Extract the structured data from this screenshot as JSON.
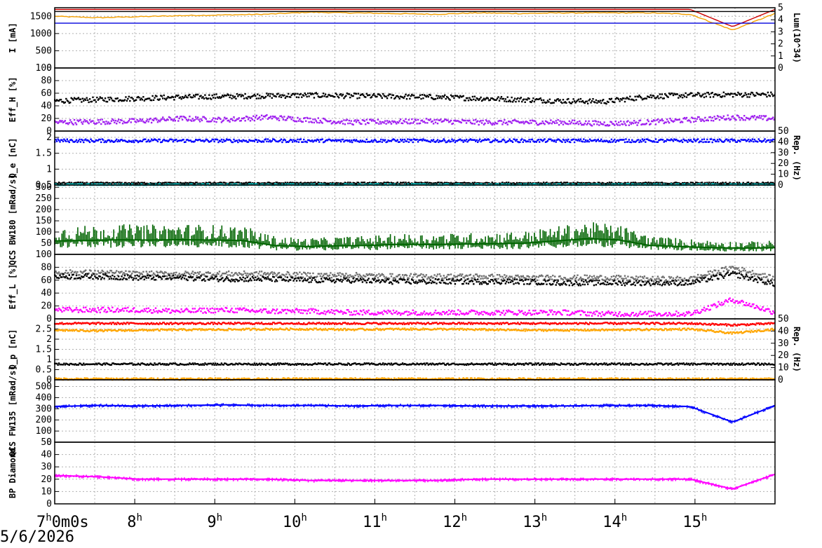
{
  "date_label": "5/6/2026",
  "chart_data": [
    {
      "type": "line",
      "ylabel_left": "I [mA]",
      "ylabel_right": "Lum(10^34)",
      "ylim_left": [
        0,
        1750
      ],
      "yticks_left": [
        "1500",
        "1000",
        "500",
        "0"
      ],
      "ylim_right": [
        0,
        5
      ],
      "yticks_right": [
        "5",
        "4",
        "3",
        "2",
        "1",
        "0"
      ],
      "grid": true,
      "series": [
        {
          "color": "#cc0000",
          "values": [
            1700,
            1700,
            1700,
            1700,
            1700,
            1700,
            1700,
            1700,
            1700,
            1700,
            1700,
            1700,
            1700,
            1700,
            1700,
            1700,
            1200,
            1700
          ]
        },
        {
          "color": "#f5a000",
          "values": [
            1500,
            1460,
            1490,
            1520,
            1540,
            1560,
            1620,
            1600,
            1580,
            1560,
            1600,
            1580,
            1600,
            1600,
            1600,
            1560,
            1100,
            1580
          ]
        },
        {
          "color": "#000000",
          "values": [
            1640,
            1640,
            1640,
            1640,
            1640,
            1640,
            1640,
            1640,
            1640,
            1640,
            1640,
            1640,
            1640,
            1640,
            1640,
            1640,
            1640,
            1640
          ]
        },
        {
          "color": "#0000dd",
          "values": [
            1300,
            1300,
            1300,
            1300,
            1300,
            1300,
            1300,
            1300,
            1300,
            1300,
            1300,
            1300,
            1300,
            1300,
            1300,
            1300,
            1300,
            1300
          ]
        }
      ]
    },
    {
      "type": "scatter",
      "ylabel_left": "Eff_H [%]",
      "ylim_left": [
        0,
        100
      ],
      "yticks_left": [
        "100",
        "80",
        "60",
        "40",
        "20",
        "0"
      ],
      "grid": true,
      "series": [
        {
          "color": "#000000",
          "values": [
            48,
            50,
            52,
            54,
            55,
            56,
            57,
            56,
            55,
            54,
            52,
            50,
            48,
            47,
            55,
            57,
            58,
            58
          ]
        },
        {
          "color": "#a020f0",
          "values": [
            14,
            15,
            16,
            20,
            18,
            22,
            18,
            14,
            15,
            16,
            14,
            14,
            14,
            12,
            14,
            18,
            22,
            20
          ]
        }
      ]
    },
    {
      "type": "scatter",
      "ylabel_left": "Q_e [nC]",
      "ylabel_right": "Rep. (Hz)",
      "ylim_left": [
        0.5,
        2.2
      ],
      "yticks_left": [
        "2",
        "1.5",
        "1",
        "0.5"
      ],
      "ylim_right": [
        0,
        50
      ],
      "yticks_right": [
        "50",
        "40",
        "30",
        "20",
        "10",
        "0"
      ],
      "grid": true,
      "series": [
        {
          "color": "#0000ff",
          "values": [
            1.9,
            1.9,
            1.9,
            1.9,
            1.9,
            1.9,
            1.9,
            1.9,
            1.9,
            1.9,
            1.9,
            1.9,
            1.9,
            1.9,
            1.9,
            1.9,
            1.9,
            1.9
          ]
        },
        {
          "color": "#000000",
          "values": [
            0.56,
            0.56,
            0.56,
            0.56,
            0.56,
            0.56,
            0.56,
            0.56,
            0.56,
            0.56,
            0.56,
            0.56,
            0.56,
            0.56,
            0.56,
            0.56,
            0.56,
            0.56
          ]
        },
        {
          "color": "#00e0e0",
          "values": [
            0.51,
            0.51,
            0.51,
            0.51,
            0.51,
            0.51,
            0.51,
            0.51,
            0.51,
            0.51,
            0.51,
            0.51,
            0.51,
            0.51,
            0.51,
            0.51,
            0.51,
            0.51
          ]
        }
      ]
    },
    {
      "type": "area",
      "ylabel_left": "QCS BW180 [mRad/s]",
      "ylim_left": [
        0,
        310
      ],
      "yticks_left": [
        "300",
        "250",
        "200",
        "150",
        "100",
        "50"
      ],
      "grid": true,
      "series": [
        {
          "color": "#006400",
          "values": [
            60,
            62,
            65,
            64,
            66,
            64,
            62,
            40,
            35,
            38,
            40,
            45,
            44,
            46,
            48,
            50,
            60,
            70,
            65,
            40,
            35,
            30,
            28,
            30
          ]
        }
      ]
    },
    {
      "type": "scatter",
      "ylabel_left": "Eff_L [%]",
      "ylim_left": [
        0,
        100
      ],
      "yticks_left": [
        "100",
        "80",
        "60",
        "40",
        "20",
        "0"
      ],
      "grid": true,
      "series": [
        {
          "color": "#707070",
          "values": [
            72,
            72,
            70,
            70,
            70,
            70,
            68,
            68,
            66,
            66,
            66,
            64,
            64,
            64,
            62,
            62,
            80,
            62
          ]
        },
        {
          "color": "#000000",
          "values": [
            66,
            66,
            64,
            64,
            62,
            62,
            60,
            60,
            58,
            58,
            58,
            58,
            56,
            56,
            56,
            56,
            70,
            54
          ]
        },
        {
          "color": "#ff00ff",
          "values": [
            14,
            14,
            14,
            12,
            14,
            12,
            12,
            10,
            10,
            10,
            10,
            10,
            10,
            8,
            8,
            8,
            30,
            10
          ]
        }
      ]
    },
    {
      "type": "scatter",
      "ylabel_left": "Q_p [nC]",
      "ylabel_right": "Rep. (Hz)",
      "ylim_left": [
        0,
        3
      ],
      "yticks_left": [
        "2.5",
        "2",
        "1.5",
        "1",
        "0.5",
        "0"
      ],
      "ylim_right": [
        0,
        50
      ],
      "yticks_right": [
        "50",
        "40",
        "30",
        "20",
        "10",
        "0"
      ],
      "grid": true,
      "series": [
        {
          "color": "#ff0000",
          "values": [
            2.78,
            2.78,
            2.78,
            2.78,
            2.78,
            2.78,
            2.78,
            2.78,
            2.78,
            2.78,
            2.78,
            2.78,
            2.78,
            2.78,
            2.78,
            2.78,
            2.7,
            2.78
          ]
        },
        {
          "color": "#ffa500",
          "values": [
            2.45,
            2.42,
            2.45,
            2.47,
            2.48,
            2.5,
            2.5,
            2.48,
            2.5,
            2.5,
            2.48,
            2.45,
            2.45,
            2.46,
            2.48,
            2.5,
            2.3,
            2.5
          ]
        },
        {
          "color": "#000000",
          "values": [
            0.78,
            0.78,
            0.78,
            0.78,
            0.78,
            0.78,
            0.78,
            0.78,
            0.78,
            0.78,
            0.78,
            0.78,
            0.78,
            0.78,
            0.78,
            0.78,
            0.78,
            0.78
          ]
        },
        {
          "color": "#ffa500",
          "values": [
            0.05,
            0.05,
            0.05,
            0.05,
            0.05,
            0.05,
            0.05,
            0.05,
            0.05,
            0.05,
            0.05,
            0.05,
            0.05,
            0.05,
            0.05,
            0.05,
            0.05,
            0.05
          ]
        }
      ]
    },
    {
      "type": "line",
      "ylabel_left": "QCS FW135 [mRad/s]",
      "ylim_left": [
        0,
        560
      ],
      "yticks_left": [
        "500",
        "400",
        "300",
        "200",
        "100",
        "0"
      ],
      "grid": true,
      "series": [
        {
          "color": "#0000ff",
          "values": [
            320,
            330,
            325,
            330,
            335,
            330,
            330,
            325,
            330,
            330,
            325,
            325,
            325,
            330,
            330,
            320,
            180,
            330
          ]
        }
      ]
    },
    {
      "type": "line",
      "ylabel_left": "BP Diamond",
      "ylim_left": [
        0,
        50
      ],
      "yticks_left": [
        "50",
        "40",
        "30",
        "20",
        "10",
        "0"
      ],
      "grid": true,
      "series": [
        {
          "color": "#ff00ff",
          "values": [
            23,
            22,
            20,
            20,
            20,
            20,
            19,
            19,
            19,
            19,
            20,
            20,
            20,
            20,
            20,
            20,
            12,
            24
          ]
        }
      ]
    }
  ],
  "x_axis": {
    "ticks": [
      {
        "h": "7",
        "rest": "0m0s"
      },
      {
        "h": "8",
        "rest": ""
      },
      {
        "h": "9",
        "rest": ""
      },
      {
        "h": "10",
        "rest": ""
      },
      {
        "h": "11",
        "rest": ""
      },
      {
        "h": "12",
        "rest": ""
      },
      {
        "h": "13",
        "rest": ""
      },
      {
        "h": "14",
        "rest": ""
      },
      {
        "h": "15",
        "rest": ""
      }
    ],
    "range_hours": [
      7,
      16
    ]
  }
}
